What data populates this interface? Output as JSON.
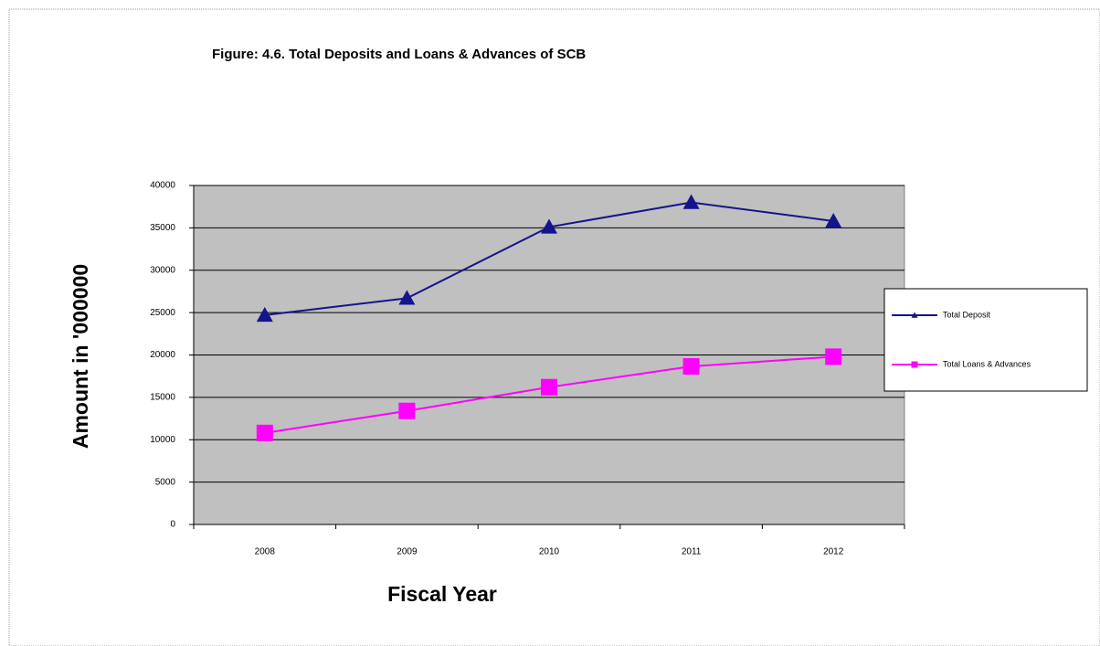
{
  "chart_data": {
    "type": "line",
    "title": "Figure: 4.6. Total Deposits and Loans & Advances of SCB",
    "x_label": "Fiscal Year",
    "y_label": "Amount in '000000",
    "categories": [
      "2008",
      "2009",
      "2010",
      "2011",
      "2012"
    ],
    "series": [
      {
        "name": "Total Deposit",
        "color": "#14148c",
        "marker": "triangle",
        "values": [
          24700,
          26700,
          35100,
          38000,
          35800
        ]
      },
      {
        "name": "Total Loans & Advances",
        "color": "#ff00ff",
        "marker": "square",
        "values": [
          10800,
          13400,
          16200,
          18650,
          19800
        ]
      }
    ],
    "ylim": [
      0,
      40000
    ],
    "yticks": [
      0,
      5000,
      10000,
      15000,
      20000,
      25000,
      30000,
      35000,
      40000
    ],
    "grid": true,
    "legend": "right"
  }
}
